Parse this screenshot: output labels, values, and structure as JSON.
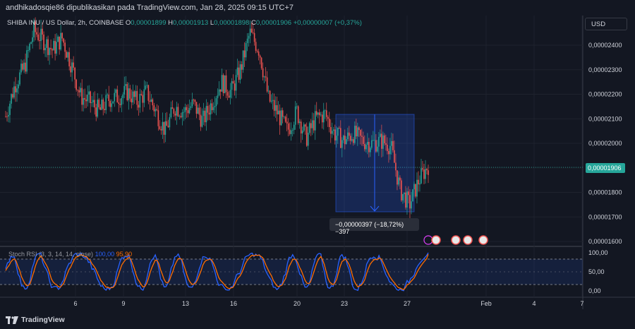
{
  "header": {
    "attribution": "andhikadosqie86 dipublikasikan pada TradingView.com, Jan 28, 2025 09:15 UTC+7"
  },
  "legend": {
    "symbol": "SHIBA INU / US Dollar, 2h, COINBASE",
    "o_label": "O",
    "o_value": "0,00001899",
    "h_label": "H",
    "h_value": "0,00001913",
    "l_label": "L",
    "l_value": "0,00001898",
    "c_label": "C",
    "c_value": "0,00001906",
    "change": "+0,00000007 (+0,37%)"
  },
  "currency": "USD",
  "last_price": "0,00001906",
  "measure_label": "−0,00000397 (−18,72%) −397",
  "indicator": {
    "name": "Stoch RSI (3, 3, 14, 14, close)",
    "k_value": "100,00",
    "d_value": "95,90",
    "ticks": [
      "100,00",
      "50,00",
      "0,00"
    ]
  },
  "price_ticks": [
    "0,00002400",
    "0,00002300",
    "0,00002200",
    "0,00002100",
    "0,00002000",
    "0,00001800",
    "0,00001700",
    "0,00001600"
  ],
  "time_ticks": [
    "6",
    "9",
    "13",
    "16",
    "20",
    "23",
    "27",
    "Feb",
    "4",
    "7"
  ],
  "brand": "TradingView",
  "colors": {
    "up": "#26a69a",
    "down": "#ef5350",
    "background": "#131722",
    "k_line": "#2962ff",
    "d_line": "#ff6d00"
  },
  "chart_data": {
    "type": "candlestick",
    "title": "SHIBA INU / US Dollar, 2h, COINBASE",
    "y_range": [
      1.6e-05,
      2.46e-05
    ],
    "x_ticks": [
      "6",
      "9",
      "13",
      "16",
      "20",
      "23",
      "27",
      "Feb",
      "4",
      "7"
    ],
    "close_path": [
      2.11e-05,
      2.24e-05,
      2.31e-05,
      2.46e-05,
      2.42e-05,
      2.38e-05,
      2.43e-05,
      2.32e-05,
      2.19e-05,
      2.17e-05,
      2.13e-05,
      2.18e-05,
      2.19e-05,
      2.21e-05,
      2.17e-05,
      2.21e-05,
      2.13e-05,
      2.05e-05,
      2.15e-05,
      2.13e-05,
      2.16e-05,
      2.09e-05,
      2.17e-05,
      2.25e-05,
      2.21e-05,
      2.3e-05,
      2.45e-05,
      2.38e-05,
      2.18e-05,
      2.12e-05,
      2.05e-05,
      2.13e-05,
      2.02e-05,
      2.1e-05,
      2.12e-05,
      2.04e-05,
      2.01e-05,
      2.04e-05,
      2.01e-05,
      2e-05,
      2.01e-05,
      1.99e-05,
      1.81e-05,
      1.75e-05,
      1.85e-05,
      1.91e-05
    ],
    "measure_range": {
      "from": 2.12e-05,
      "to": 1.72e-05,
      "change": "−0,00000397",
      "percent": "−18,72%",
      "ticks": "−397"
    },
    "stoch_rsi": {
      "k": 100.0,
      "d": 95.9,
      "levels": [
        80,
        20
      ]
    }
  }
}
